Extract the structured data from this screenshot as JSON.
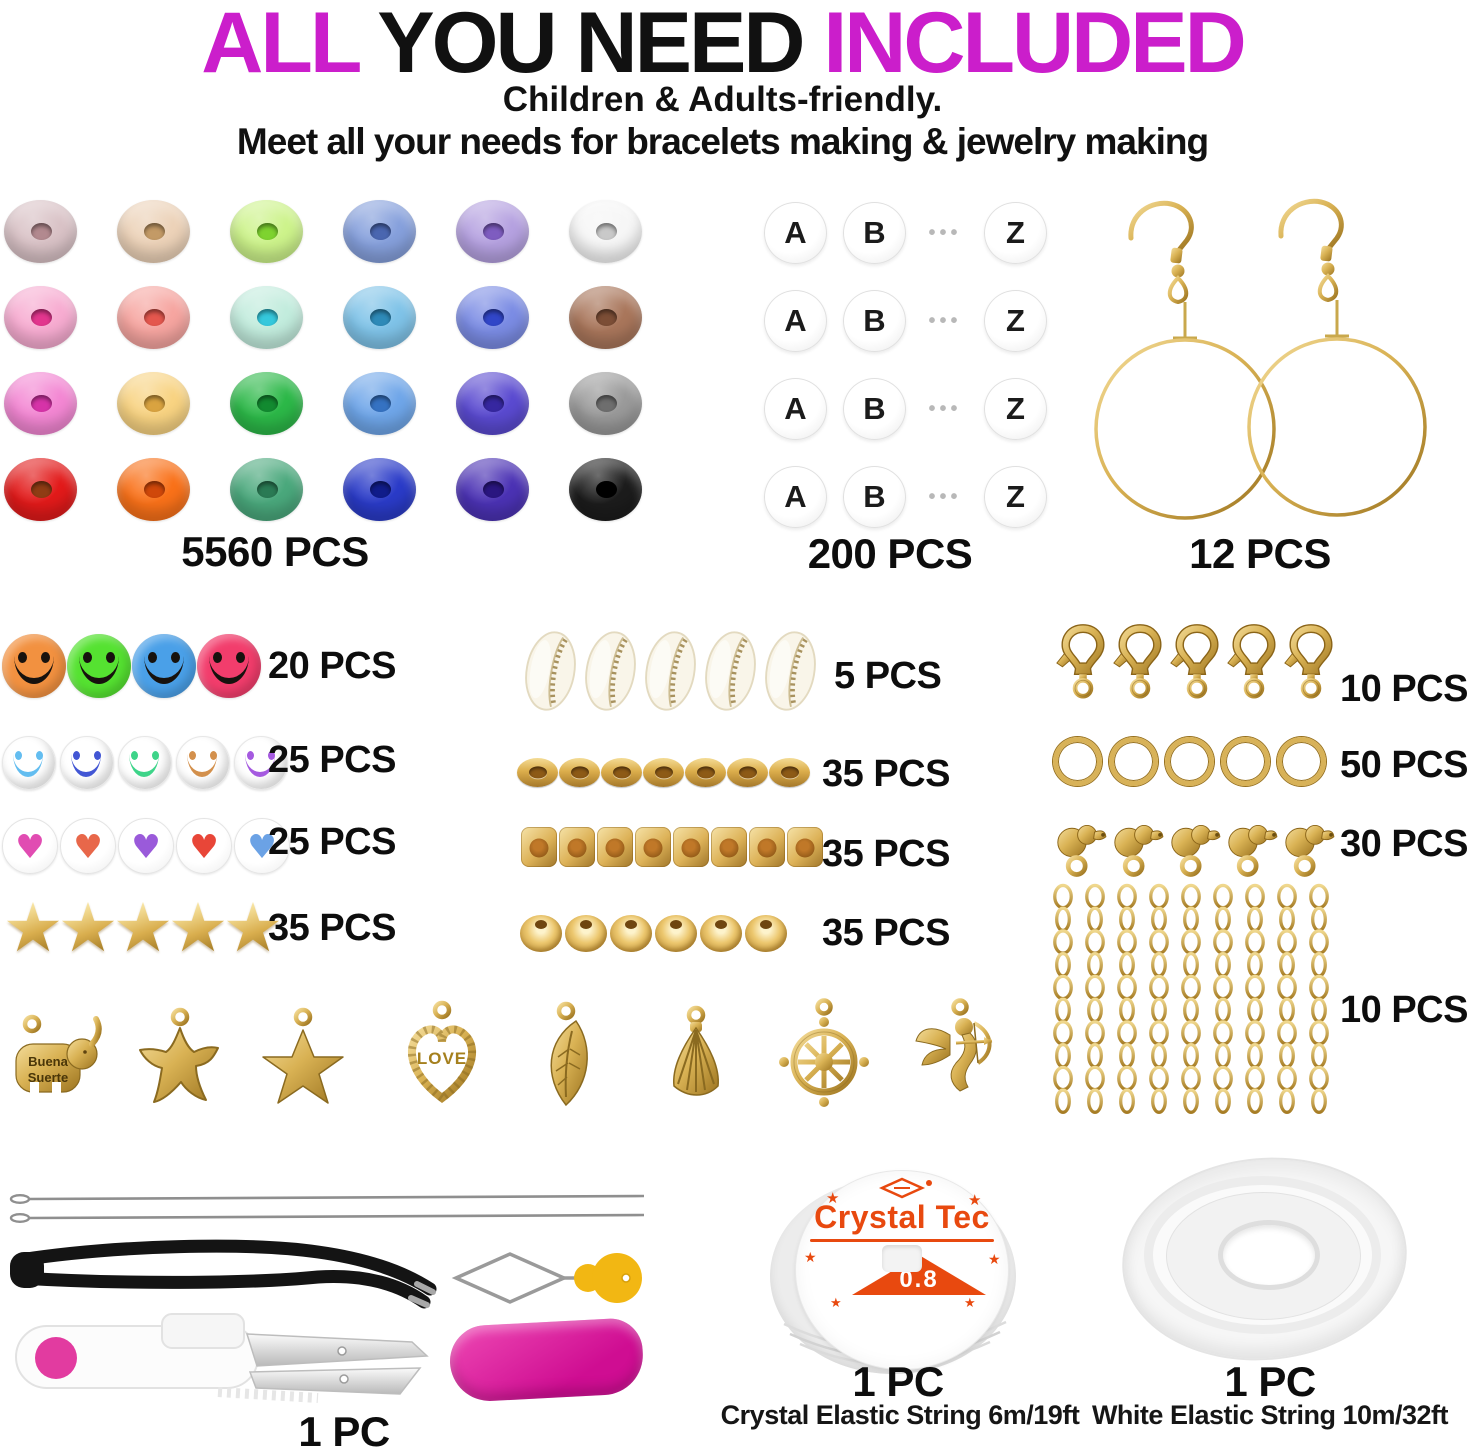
{
  "colors": {
    "accent_magenta": "#cb1ecb",
    "text_black": "#111111",
    "gold": "#d4af37",
    "brand_orange": "#e8490f"
  },
  "header": {
    "title_part1": "ALL",
    "title_part2": "YOU NEED",
    "title_part3": "INCLUDED",
    "subtitle1": "Children & Adults-friendly.",
    "subtitle2": "Meet all your needs for bracelets making & jewelry making"
  },
  "icons": {
    "star": "★",
    "heart": "♥",
    "dots": "•••"
  },
  "kit": {
    "clay_beads": {
      "pcs": "5560 PCS",
      "rows": [
        [
          {
            "c": "#d9c2c6",
            "h": "#b2898f"
          },
          {
            "c": "#ecd2b8",
            "h": "#c39a66"
          },
          {
            "c": "#cdf38b",
            "h": "#7ed32f"
          },
          {
            "c": "#86a0dc",
            "h": "#4a66b0"
          },
          {
            "c": "#b5a1e0",
            "h": "#7e5cc0"
          },
          {
            "c": "#f6f6f6",
            "h": "#c9c9c9"
          }
        ],
        [
          {
            "c": "#f7acd1",
            "h": "#e2368e"
          },
          {
            "c": "#f6a5a0",
            "h": "#e4574e"
          },
          {
            "c": "#c2ecdd",
            "h": "#35c8dc"
          },
          {
            "c": "#7fc3e8",
            "h": "#2e8ab8"
          },
          {
            "c": "#7b8ce4",
            "h": "#3146c8"
          },
          {
            "c": "#a9765b",
            "h": "#7c4e36"
          }
        ],
        [
          {
            "c": "#f387d3",
            "h": "#d633a8"
          },
          {
            "c": "#f8d382",
            "h": "#d9a340"
          },
          {
            "c": "#2cb848",
            "h": "#128a30"
          },
          {
            "c": "#6fa6e9",
            "h": "#3572c2"
          },
          {
            "c": "#5a4ad0",
            "h": "#3627a0"
          },
          {
            "c": "#9a9a9a",
            "h": "#6e6e6e"
          }
        ],
        [
          {
            "c": "#e21a1a",
            "h": "#8f3c14"
          },
          {
            "c": "#f97119",
            "h": "#d0480a"
          },
          {
            "c": "#4aa87c",
            "h": "#2a7a54"
          },
          {
            "c": "#2a3bc8",
            "h": "#101c8a"
          },
          {
            "c": "#4b32b4",
            "h": "#2a1680"
          },
          {
            "c": "#1c1c1c",
            "h": "#000000"
          }
        ]
      ]
    },
    "letter_beads": {
      "pcs": "200 PCS",
      "rows": 4,
      "sequence": [
        "A",
        "B",
        "Z"
      ]
    },
    "earrings": {
      "pcs": "12 PCS"
    },
    "smiley_beads_colored": {
      "pcs": "20 PCS",
      "colors": [
        "#f29140",
        "#55e231",
        "#4aa0e8",
        "#f23d6c"
      ]
    },
    "smiley_beads_white": {
      "pcs": "25 PCS",
      "face_colors": [
        "#63bdf0",
        "#4256d4",
        "#3ed489",
        "#d3904c",
        "#a55ae0"
      ]
    },
    "heart_beads": {
      "pcs": "25 PCS",
      "heart_colors": [
        "#e14cb2",
        "#e8674a",
        "#9a5ada",
        "#e84638",
        "#6ba2e5"
      ]
    },
    "star_beads": {
      "pcs": "35 PCS",
      "count": 5
    },
    "shell_beads": {
      "pcs": "5 PCS",
      "count": 5
    },
    "gold_spacer_rings": {
      "pcs": "35 PCS",
      "count": 7
    },
    "gold_cube_beads": {
      "pcs": "35 PCS",
      "count": 8
    },
    "gold_faceted_beads": {
      "pcs": "35 PCS",
      "count": 6
    },
    "lobster_clasps": {
      "pcs": "10 PCS",
      "count": 5
    },
    "jump_rings": {
      "pcs": "50 PCS",
      "count": 5
    },
    "bead_tips": {
      "pcs": "30 PCS",
      "count": 5
    },
    "extension_chains": {
      "pcs": "10 PCS",
      "count": 9
    },
    "charms": {
      "names": [
        "elephant",
        "starfish",
        "star",
        "love-heart",
        "leaf",
        "shell",
        "ship-wheel",
        "cupid"
      ],
      "elephant_line1": "Buena",
      "elephant_line2": "Suerte",
      "heart_word": "LOVE"
    },
    "tools": {
      "pcs": "1 PC",
      "items": [
        "beading-needles",
        "tweezers",
        "needle-threader",
        "thread-snips",
        "safety-cover"
      ]
    },
    "crystal_string": {
      "pcs": "1 PC",
      "desc": "Crystal Elastic String 6m/19ft",
      "brand": "Crystal Tec",
      "gauge": "0.8"
    },
    "white_string": {
      "pcs": "1 PC",
      "desc": "White Elastic String 10m/32ft"
    }
  }
}
